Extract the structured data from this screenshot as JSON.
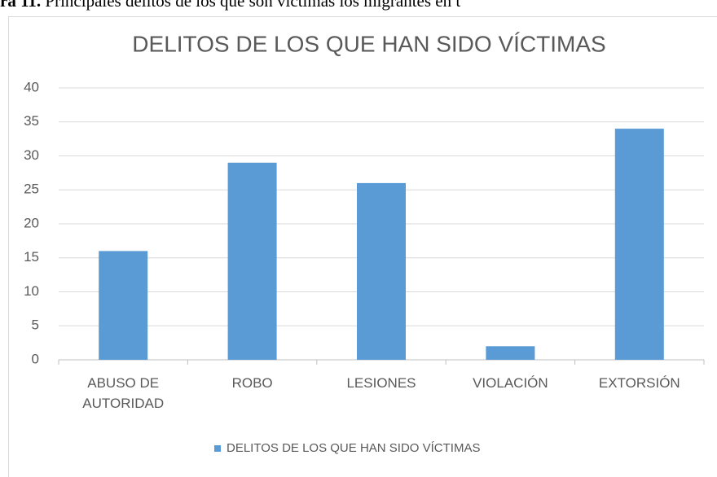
{
  "caption_label": "ra 11.",
  "caption": "Principales delitos de los que son víctimas los migrantes en t",
  "chart_data": {
    "type": "bar",
    "title": "DELITOS DE LOS QUE HAN SIDO VÍCTIMAS",
    "categories": [
      "ABUSO DE AUTORIDAD",
      "ROBO",
      "LESIONES",
      "VIOLACIÓN",
      "EXTORSIÓN"
    ],
    "series": [
      {
        "name": "DELITOS DE LOS QUE HAN SIDO VÍCTIMAS",
        "color": "#5b9bd5",
        "values": [
          16,
          29,
          26,
          2,
          34
        ]
      }
    ],
    "ylim": [
      0,
      40
    ],
    "yticks": [
      0,
      5,
      10,
      15,
      20,
      25,
      30,
      35,
      40
    ],
    "grid": true,
    "legend": "bottom"
  }
}
